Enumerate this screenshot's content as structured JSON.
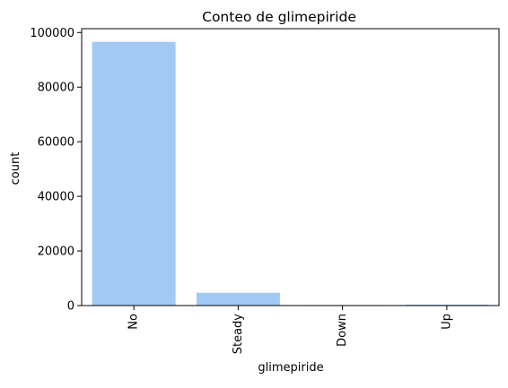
{
  "chart_data": {
    "type": "bar",
    "title": "Conteo de glimepiride",
    "xlabel": "glimepiride",
    "ylabel": "count",
    "categories": [
      "No",
      "Steady",
      "Down",
      "Up"
    ],
    "values": [
      96575,
      4670,
      194,
      327
    ],
    "ylim": [
      0,
      101404
    ],
    "yticks": [
      0,
      20000,
      40000,
      60000,
      80000,
      100000
    ],
    "ytick_labels": [
      "0",
      "20000",
      "40000",
      "60000",
      "80000",
      "100000"
    ],
    "xtick_rotation": "vertical",
    "bar_color": "#a1c9f4",
    "grid": false,
    "legend": "none"
  }
}
